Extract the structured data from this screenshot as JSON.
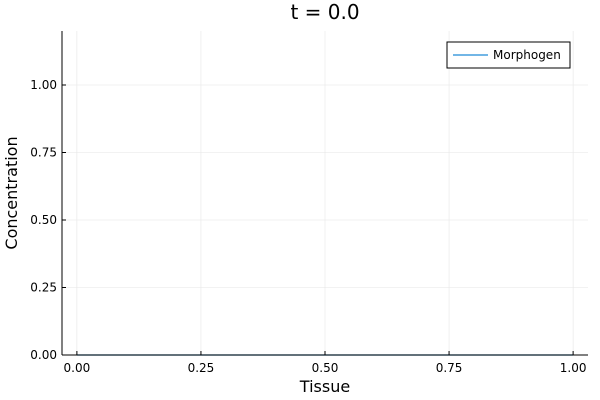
{
  "chart_data": {
    "type": "line",
    "title": "t = 0.0",
    "xlabel": "Tissue",
    "ylabel": "Concentration",
    "xlim": [
      -0.03,
      1.03
    ],
    "ylim": [
      0.0,
      1.2
    ],
    "xticks": [
      0.0,
      0.25,
      0.5,
      0.75,
      1.0
    ],
    "xtick_labels": [
      "0.00",
      "0.25",
      "0.50",
      "0.75",
      "1.00"
    ],
    "yticks": [
      0.0,
      0.25,
      0.5,
      0.75,
      1.0
    ],
    "ytick_labels": [
      "0.00",
      "0.25",
      "0.50",
      "0.75",
      "1.00"
    ],
    "grid": true,
    "legend_position": "top-right",
    "series": [
      {
        "name": "Morphogen",
        "color": "#1f8bd8",
        "x": [
          0.0,
          0.1,
          0.2,
          0.3,
          0.4,
          0.5,
          0.6,
          0.7,
          0.8,
          0.9,
          1.0
        ],
        "y": [
          0.0,
          0.0,
          0.0,
          0.0,
          0.0,
          0.0,
          0.0,
          0.0,
          0.0,
          0.0,
          0.0
        ]
      }
    ]
  }
}
